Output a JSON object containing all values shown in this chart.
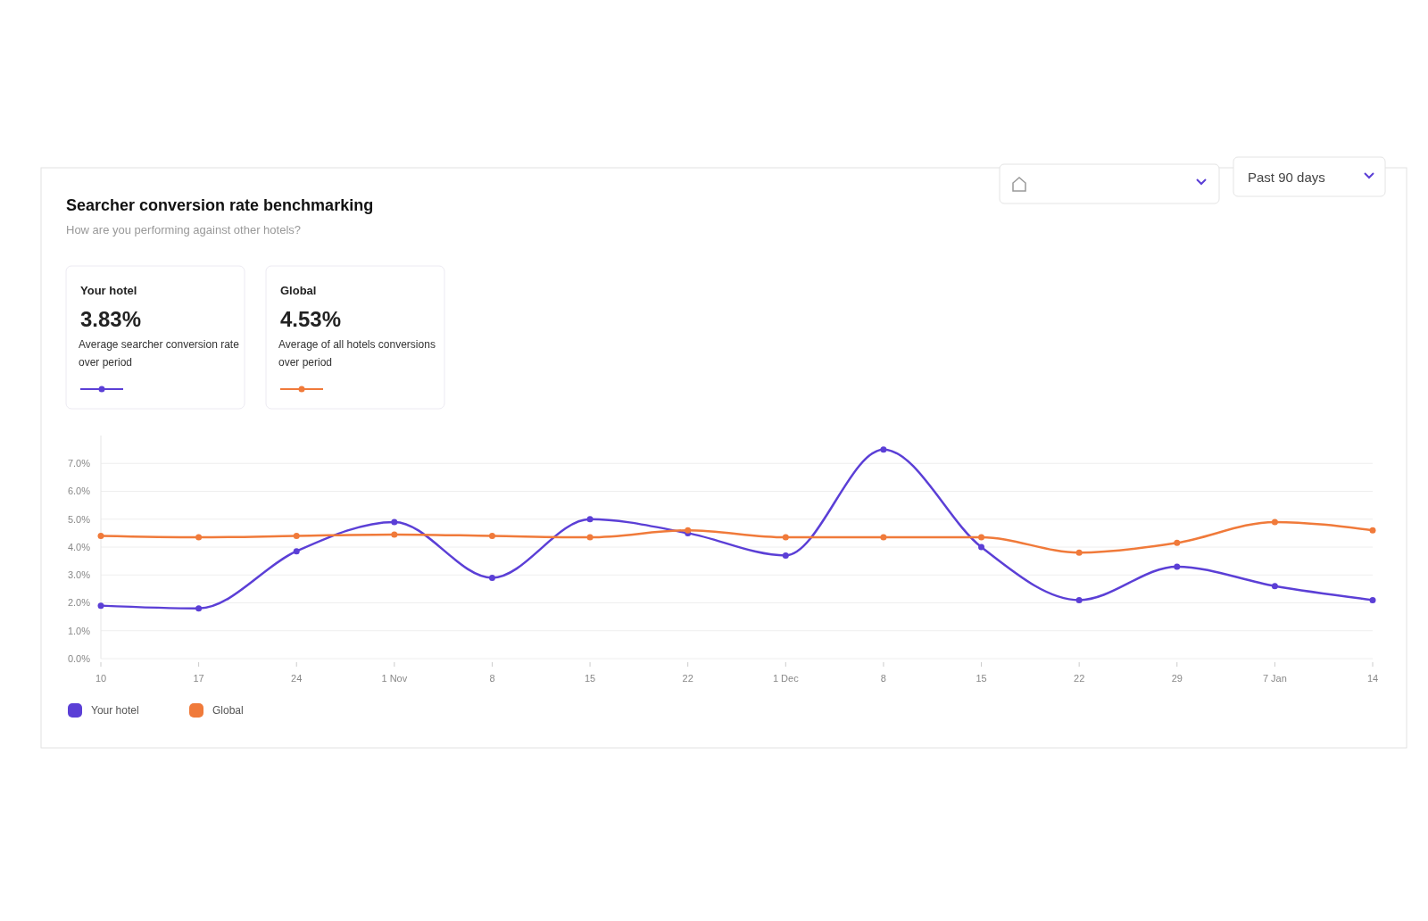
{
  "chart_data": {
    "type": "line",
    "title": "Searcher conversion rate benchmarking",
    "subtitle": "How are you performing against other hotels?",
    "annotations": [
      "Your hotel",
      "3.83%",
      "Average searcher conversion rate over period",
      "Global",
      "4.53%",
      "Average of all hotels conversions over period",
      "Past 90 days"
    ],
    "categories": [
      "10",
      "17",
      "24",
      "1 Nov",
      "8",
      "15",
      "22",
      "1 Dec",
      "8",
      "15",
      "22",
      "29",
      "7 Jan",
      "14"
    ],
    "series": [
      {
        "name": "Your hotel",
        "color": "#5b3fd6",
        "values": [
          1.9,
          1.8,
          3.85,
          4.9,
          2.9,
          5.0,
          4.5,
          3.7,
          7.5,
          4.0,
          2.1,
          3.3,
          2.6,
          2.1
        ]
      },
      {
        "name": "Global",
        "color": "#f07a3a",
        "values": [
          4.4,
          4.35,
          4.4,
          4.45,
          4.4,
          4.35,
          4.6,
          4.35,
          4.35,
          4.35,
          3.8,
          4.15,
          4.9,
          4.6
        ]
      }
    ],
    "ylim": [
      0,
      8
    ],
    "yticks": [
      {
        "value": 0,
        "label": "0.0%"
      },
      {
        "value": 1,
        "label": "1.0%"
      },
      {
        "value": 2,
        "label": "2.0%"
      },
      {
        "value": 3,
        "label": "3.0%"
      },
      {
        "value": 4,
        "label": "4.0%"
      },
      {
        "value": 5,
        "label": "5.0%"
      },
      {
        "value": 6,
        "label": "6.0%"
      },
      {
        "value": 7,
        "label": "7.0%"
      }
    ],
    "grid": "y",
    "legend": "bottom left",
    "marker": "circle",
    "line_style": "solid"
  }
}
